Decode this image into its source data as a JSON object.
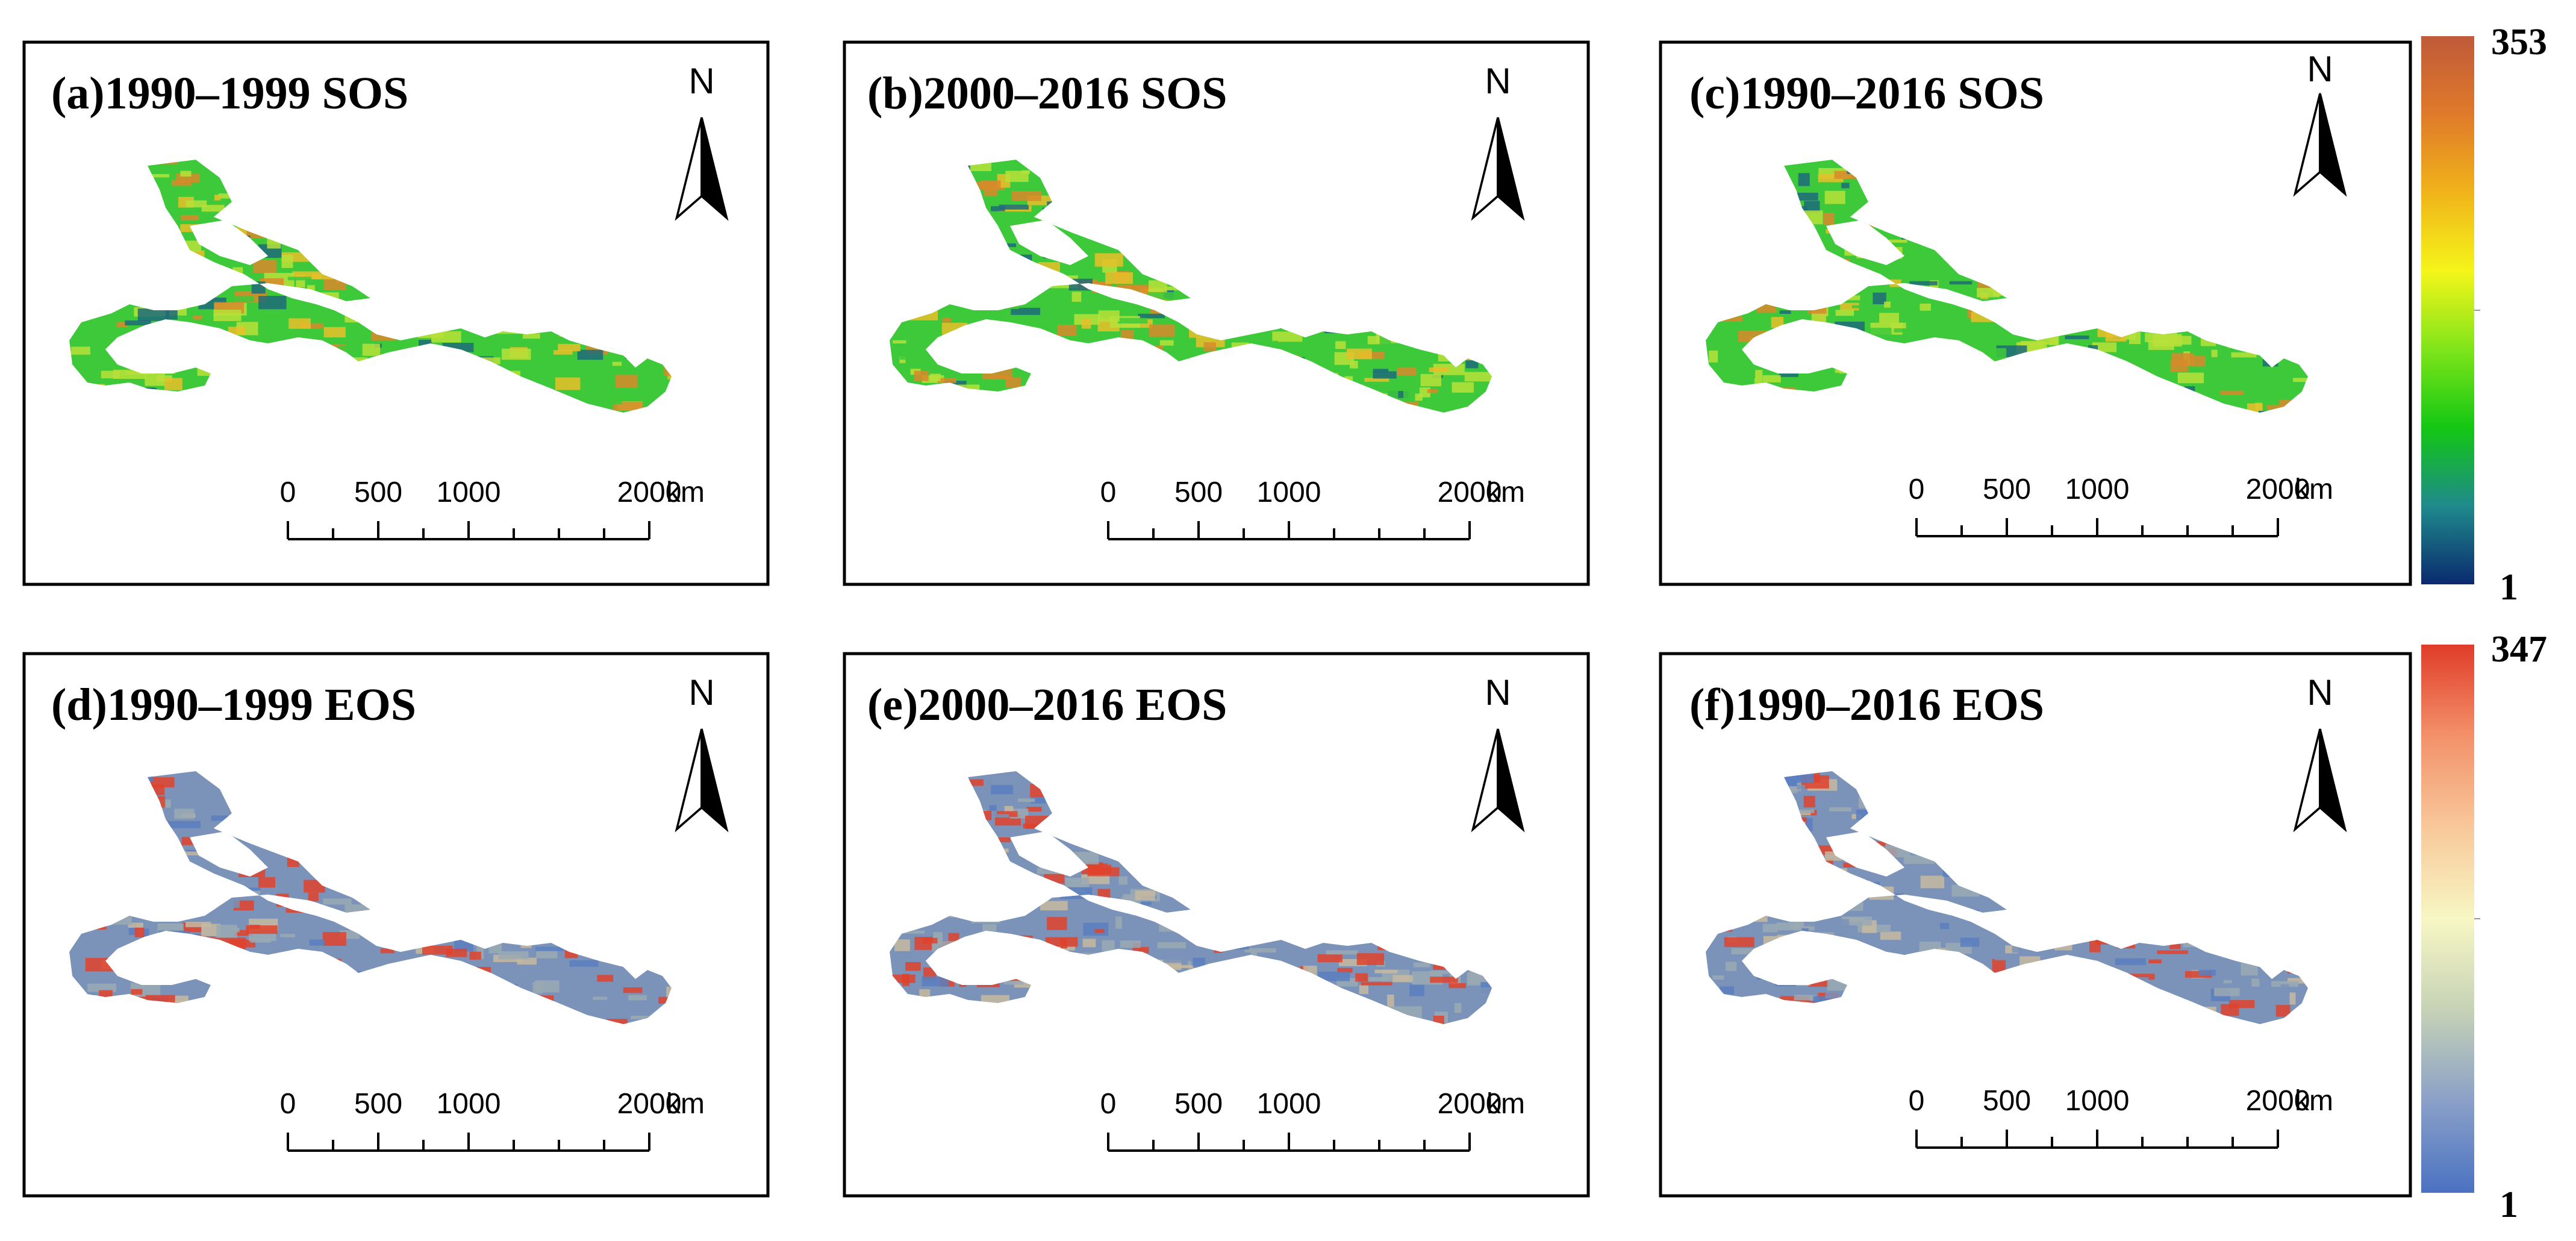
{
  "panels": [
    {
      "id": "a",
      "title": "(a)1990–1999 SOS",
      "variable": "SOS"
    },
    {
      "id": "b",
      "title": "(b)2000–2016 SOS",
      "variable": "SOS"
    },
    {
      "id": "c",
      "title": "(c)1990–2016 SOS",
      "variable": "SOS"
    },
    {
      "id": "d",
      "title": "(d)1990–1999 EOS",
      "variable": "EOS"
    },
    {
      "id": "e",
      "title": "(e)2000–2016 EOS",
      "variable": "EOS"
    },
    {
      "id": "f",
      "title": "(f)1990–2016 EOS",
      "variable": "EOS"
    }
  ],
  "north_arrow": {
    "label": "N"
  },
  "scale_bar": {
    "labels": [
      "0",
      "500",
      "1000",
      "2000"
    ],
    "values": [
      0,
      500,
      1000,
      2000
    ],
    "unit": "km",
    "max": 2000,
    "minor_ticks": 8
  },
  "legends": {
    "sos": {
      "max_label": "353",
      "min_label": "1",
      "stops": [
        "#0a2a6e",
        "#1f8a8c",
        "#13c713",
        "#7fe51a",
        "#f5f51a",
        "#f0b41a",
        "#e07a2a",
        "#c05a3a"
      ]
    },
    "eos": {
      "max_label": "347",
      "min_label": "1",
      "stops": [
        "#4a72c2",
        "#8aa0c8",
        "#c6d2b6",
        "#f7f7c4",
        "#f8c89a",
        "#f3916a",
        "#e03c2a"
      ]
    }
  },
  "map_colors": {
    "SOS": {
      "base": "#3ec93a",
      "mid": "#b7e03a",
      "warm": "#e8c02a",
      "hot": "#d98a2a",
      "cold": "#1d6b7a"
    },
    "EOS": {
      "base": "#7b93b8",
      "mid": "#9aa9b3",
      "warm": "#c7b9a0",
      "hot": "#e0422c",
      "cold": "#5a7fc0"
    }
  }
}
